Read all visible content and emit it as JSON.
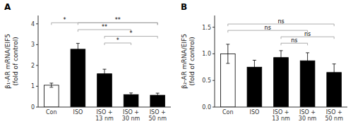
{
  "chart_data": [
    {
      "type": "bar",
      "title": "A",
      "categories": [
        "Con",
        "ISO",
        "ISO +\n13 nm",
        "ISO +\n30 nm",
        "ISO +\n50 nm"
      ],
      "values": [
        1.05,
        2.78,
        1.6,
        0.6,
        0.57
      ],
      "errors": [
        0.1,
        0.28,
        0.22,
        0.08,
        0.1
      ],
      "colors": [
        "white",
        "black",
        "black",
        "black",
        "black"
      ],
      "y_label": "β₁-AR mRNA/EIF5\n(fold of control)",
      "ylim": [
        0,
        4.4
      ],
      "yticks": [
        0,
        1,
        2,
        3,
        4
      ],
      "grid": false,
      "annotations": [
        {
          "text": "**",
          "x1": 1,
          "x2": 4,
          "y": 4.05
        },
        {
          "text": "**",
          "x1": 1,
          "x2": 3,
          "y": 3.72
        },
        {
          "text": "*",
          "x1": 2,
          "x2": 4,
          "y": 3.4
        },
        {
          "text": "*",
          "x1": 2,
          "x2": 3,
          "y": 3.08
        },
        {
          "text": "*",
          "x1": 0,
          "x2": 4,
          "y": 4.05,
          "text_x": 0.5
        }
      ]
    },
    {
      "type": "bar",
      "title": "B",
      "categories": [
        "Con",
        "ISO",
        "ISO +\n13 nm",
        "ISO +\n30 nm",
        "ISO +\n50 nm"
      ],
      "values": [
        1.0,
        0.75,
        0.93,
        0.87,
        0.65
      ],
      "errors": [
        0.18,
        0.13,
        0.13,
        0.15,
        0.16
      ],
      "colors": [
        "white",
        "black",
        "black",
        "black",
        "black"
      ],
      "y_label": "β₂-AR mRNA/EIF5\n(fold of control)",
      "ylim": [
        0,
        1.72
      ],
      "yticks": [
        {
          "value": 0,
          "label": "0.0"
        },
        0.5,
        {
          "value": 1,
          "label": "1.0"
        },
        1.5
      ],
      "grid": false,
      "annotations": [
        {
          "text": "ns",
          "x1": 0,
          "x2": 4,
          "y": 1.56
        },
        {
          "text": "ns",
          "x1": 0,
          "x2": 3,
          "y": 1.44
        },
        {
          "text": "ns",
          "x1": 2,
          "x2": 4,
          "y": 1.32
        },
        {
          "text": "ns",
          "x1": 2,
          "x2": 3,
          "y": 1.2
        }
      ]
    }
  ]
}
